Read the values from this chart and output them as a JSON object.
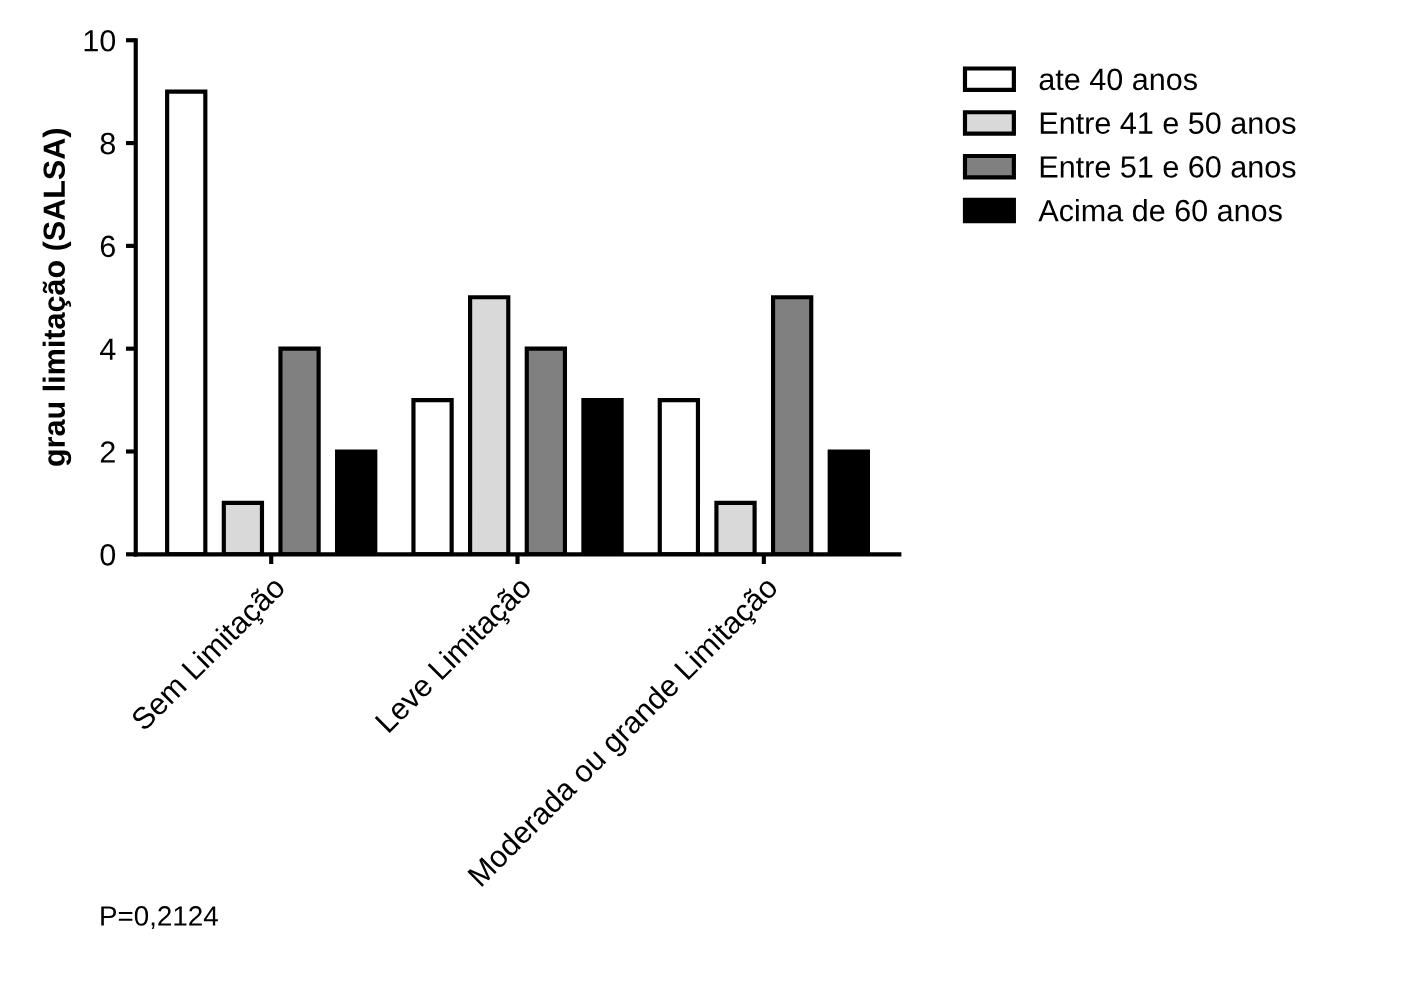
{
  "chart_data": {
    "type": "bar",
    "ylabel": "grau limitação (SALSA)",
    "categories": [
      "Sem Limitação",
      "Leve Limitação",
      "Moderada ou grande Limitação"
    ],
    "series": [
      {
        "name": "ate 40 anos",
        "color": "#ffffff",
        "values": [
          9,
          3,
          3
        ]
      },
      {
        "name": "Entre 41 e 50 anos",
        "color": "#d9d9d9",
        "values": [
          1,
          5,
          1
        ]
      },
      {
        "name": "Entre 51 e 60 anos",
        "color": "#808080",
        "values": [
          4,
          4,
          5
        ]
      },
      {
        "name": "Acima de 60 anos",
        "color": "#000000",
        "values": [
          2,
          3,
          2
        ]
      }
    ],
    "ylim": [
      0,
      10
    ],
    "yticks": [
      0,
      2,
      4,
      6,
      8,
      10
    ],
    "grid": false,
    "legend": "top right",
    "annotations": [
      "P=0,2124"
    ]
  }
}
